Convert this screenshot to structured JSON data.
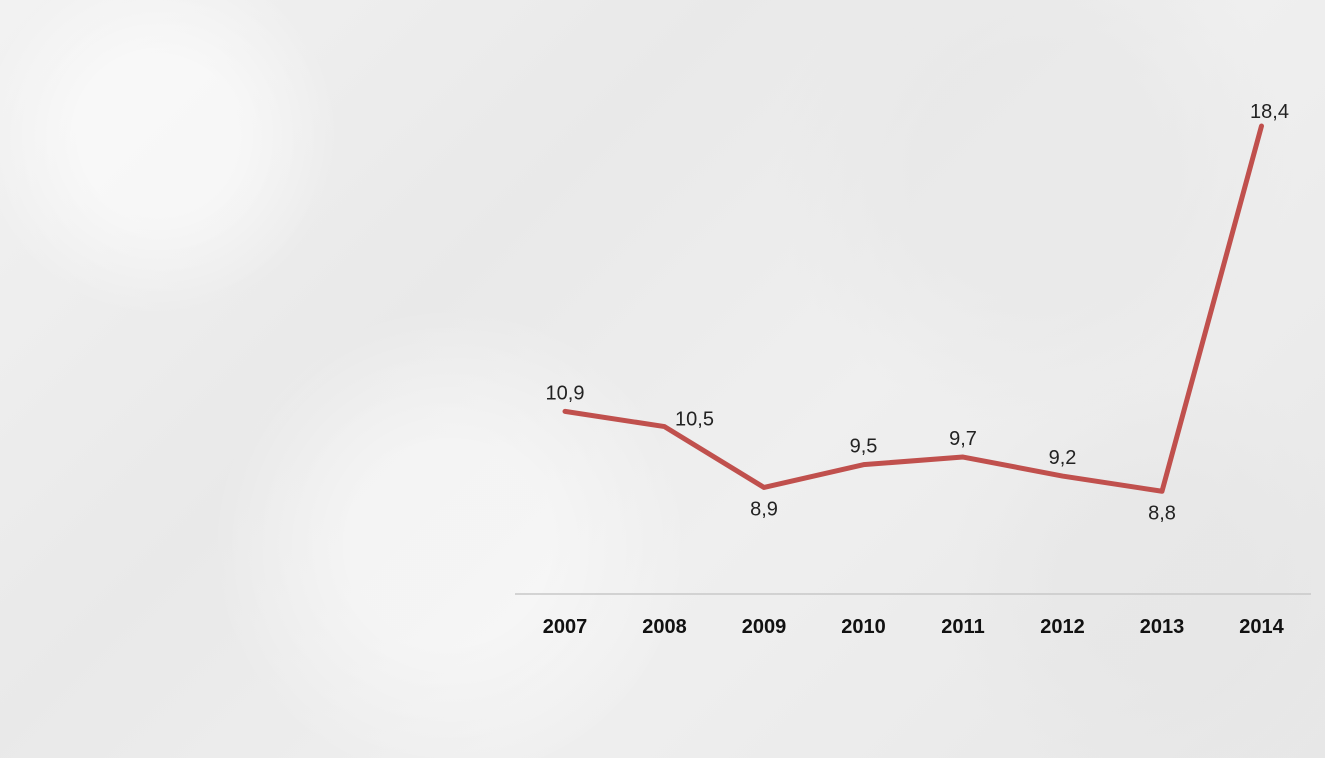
{
  "chart_data": {
    "type": "line",
    "title": "",
    "xlabel": "",
    "ylabel": "",
    "x": [
      "2007",
      "2008",
      "2009",
      "2010",
      "2011",
      "2012",
      "2013",
      "2014"
    ],
    "series": [
      {
        "values": [
          10.9,
          10.5,
          8.9,
          9.5,
          9.7,
          9.2,
          8.8,
          18.4
        ],
        "data_labels": [
          "10,9",
          "10,5",
          "8,9",
          "9,5",
          "9,7",
          "9,2",
          "8,8",
          "18,4"
        ],
        "color": "#C0504D"
      }
    ],
    "grid": false,
    "legend": "none"
  }
}
